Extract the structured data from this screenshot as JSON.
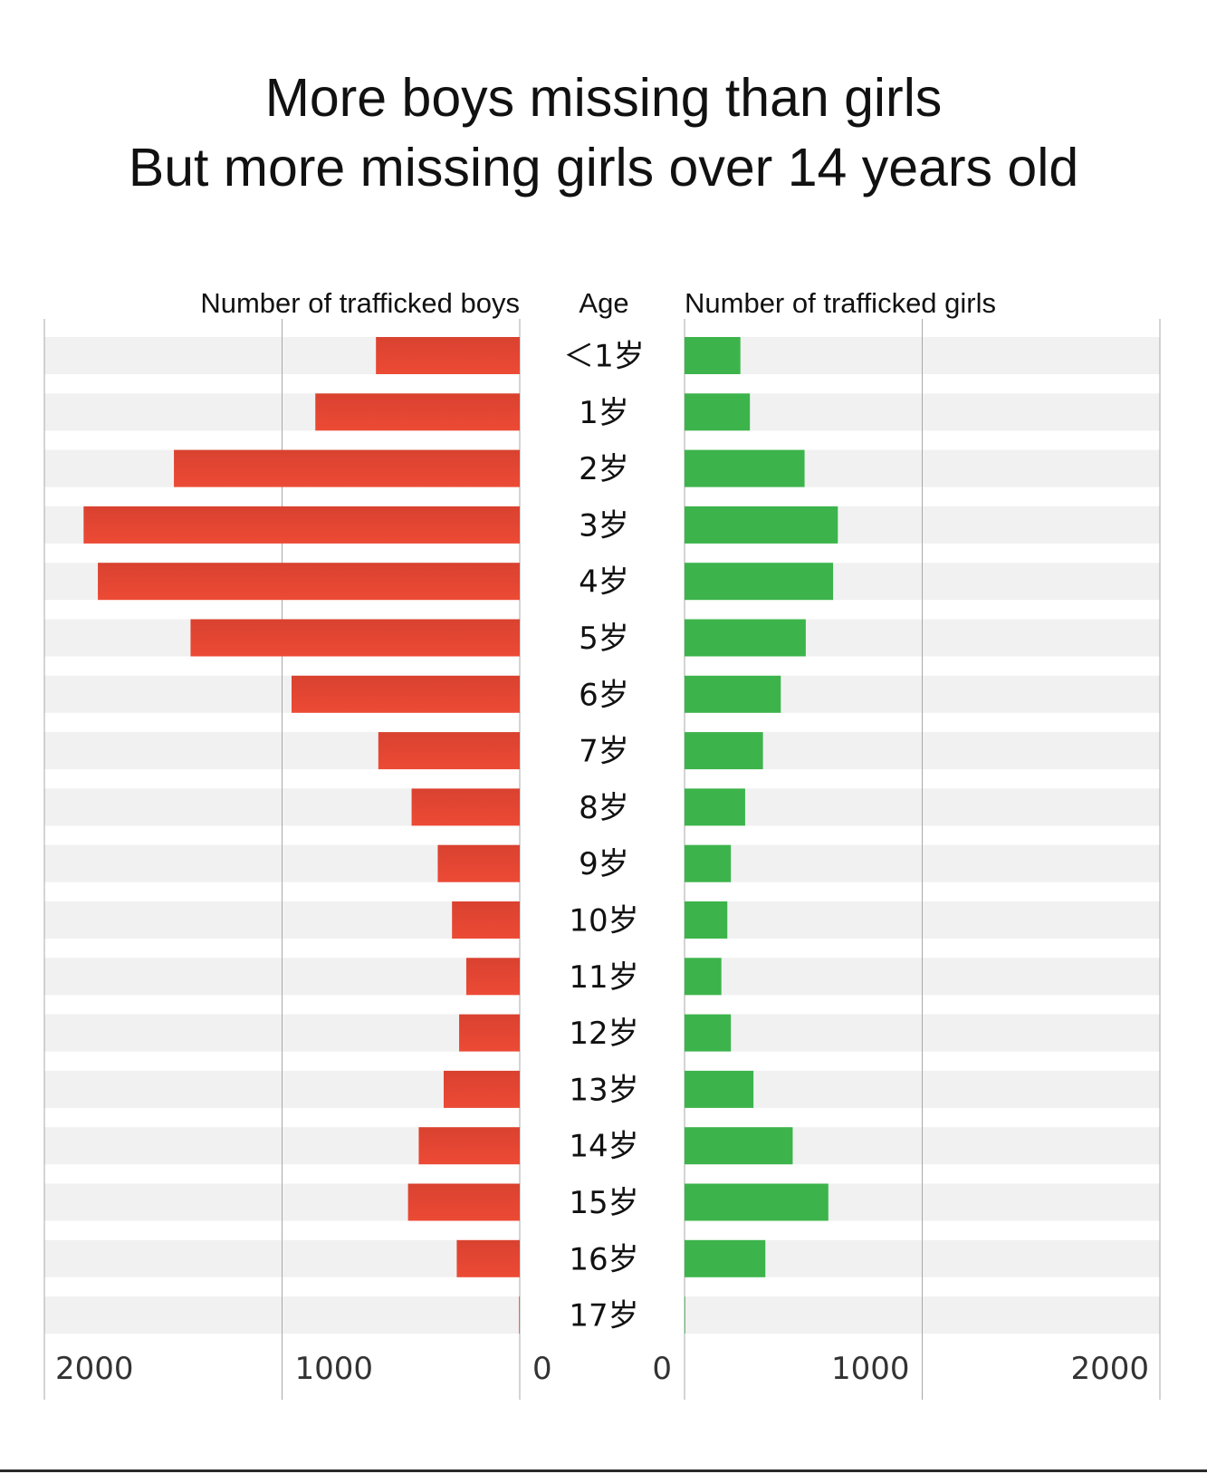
{
  "chart_data": {
    "type": "bar",
    "title_lines": [
      "More boys missing than girls",
      "But more missing girls over 14 years old"
    ],
    "left_header": "Number of trafficked boys",
    "center_header": "Age",
    "right_header": "Number of trafficked girls",
    "categories": [
      "＜1岁",
      "1岁",
      "2岁",
      "3岁",
      "4岁",
      "5岁",
      "6岁",
      "7岁",
      "8岁",
      "9岁",
      "10岁",
      "11岁",
      "12岁",
      "13岁",
      "14岁",
      "15岁",
      "16岁",
      "17岁"
    ],
    "series": [
      {
        "name": "Number of trafficked boys",
        "side": "left",
        "values": [
          605,
          860,
          1455,
          1835,
          1775,
          1385,
          960,
          595,
          455,
          345,
          285,
          225,
          255,
          320,
          425,
          470,
          265,
          3
        ]
      },
      {
        "name": "Number of trafficked girls",
        "side": "right",
        "values": [
          235,
          275,
          505,
          645,
          625,
          510,
          405,
          330,
          255,
          195,
          180,
          155,
          195,
          290,
          455,
          605,
          340,
          3
        ]
      }
    ],
    "x_ticks_left": [
      "2000",
      "1000",
      "0"
    ],
    "x_ticks_right": [
      "0",
      "1000",
      "2000"
    ],
    "xlim": [
      0,
      2000
    ],
    "colors": {
      "boys_gradient": [
        "#d94230",
        "#ec4a35"
      ],
      "girls": "#3cb44b",
      "row_band": "#f1f1f1",
      "gridline": "#a8a8a8"
    }
  }
}
